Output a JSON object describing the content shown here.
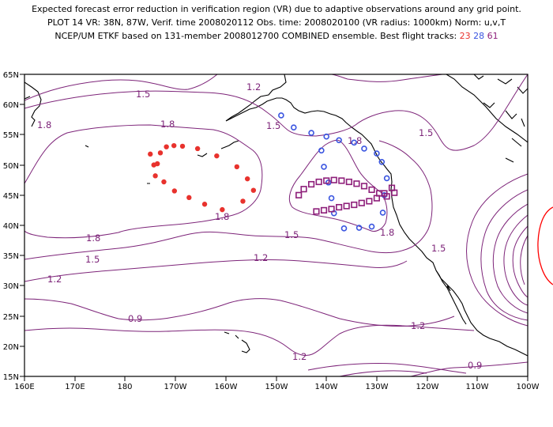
{
  "title": {
    "line1": "Expected forecast error reduction in verification region (VR) due to adaptive observations around any grid point.",
    "line2": "PLOT 14 VR: 38N, 87W, Verif. time 2008020112 Obs. time: 2008020100 (VR radius: 1000km) Norm: u,v,T",
    "line3_prefix": "NCEP/UM ETKF based on 131-member 2008012700 COMBINED ensemble.  Best flight tracks:",
    "track_red": "23",
    "track_blue": "28",
    "track_purple": "61"
  },
  "axes": {
    "lon_labels": [
      "160E",
      "170E",
      "180",
      "170W",
      "160W",
      "150W",
      "140W",
      "130W",
      "120W",
      "110W",
      "100W"
    ],
    "lat_labels": [
      "65N",
      "60N",
      "55N",
      "50N",
      "45N",
      "40N",
      "35N",
      "30N",
      "25N",
      "20N",
      "15N"
    ]
  },
  "colors": {
    "contour": "#7d2479",
    "red_track": "#e8322d",
    "blue_track": "#3a55e0",
    "purple_track": "#8e1f7a",
    "vr_circle": "#ff0000"
  },
  "contour_labels": [
    "1.2",
    "1.5",
    "1.8",
    "1.8",
    "1.5",
    "1.8",
    "1.5",
    "1.8",
    "1.8",
    "1.5",
    "1.5",
    "1.2",
    "1.5",
    "1.8",
    "1.2",
    "0.9",
    "1.2",
    "1.2",
    "0.9"
  ],
  "flight_tracks": {
    "red": {
      "lon": [
        -175.0,
        -173.6,
        -174.0,
        -172.3,
        -170.2,
        -167.3,
        -164.2,
        -160.7,
        -156.6,
        -154.5,
        -155.7,
        -157.8,
        -161.8,
        -165.6,
        -168.6,
        -170.3,
        -171.8,
        -173.0,
        -174.3
      ],
      "lat": [
        51.8,
        50.2,
        48.2,
        47.2,
        45.7,
        44.6,
        43.5,
        42.6,
        44.0,
        45.8,
        47.7,
        49.7,
        51.5,
        52.7,
        53.1,
        53.2,
        53.0,
        52.0,
        50.0
      ]
    },
    "blue": {
      "lon": [
        -149.0,
        -146.5,
        -143.0,
        -140.0,
        -137.5,
        -134.5,
        -132.5,
        -130.0,
        -129.0,
        -128.0,
        -128.5,
        -128.8,
        -131.0,
        -133.5,
        -136.5,
        -138.5,
        -139.0,
        -139.6,
        -140.5,
        -141.0
      ],
      "lat": [
        58.2,
        56.2,
        55.3,
        54.7,
        54.1,
        53.7,
        52.7,
        51.9,
        50.5,
        47.8,
        45.0,
        42.1,
        39.8,
        39.6,
        39.5,
        42.0,
        44.5,
        47.1,
        49.7,
        52.4
      ]
    },
    "purple": {
      "lon": [
        -145.5,
        -144.5,
        -143.0,
        -141.5,
        -140.0,
        -138.5,
        -137.0,
        -135.5,
        -134.0,
        -132.5,
        -131.0,
        -129.5,
        -128.0,
        -126.5,
        -127.0,
        -128.5,
        -130.0,
        -131.5,
        -133.0,
        -134.5,
        -136.0,
        -137.5,
        -139.0,
        -140.5,
        -142.0
      ],
      "lat": [
        45.0,
        46.0,
        46.8,
        47.2,
        47.4,
        47.5,
        47.4,
        47.2,
        46.9,
        46.5,
        45.9,
        45.3,
        44.8,
        45.4,
        46.2,
        45.3,
        44.5,
        44.0,
        43.7,
        43.4,
        43.2,
        43.0,
        42.7,
        42.5,
        42.3
      ]
    }
  }
}
